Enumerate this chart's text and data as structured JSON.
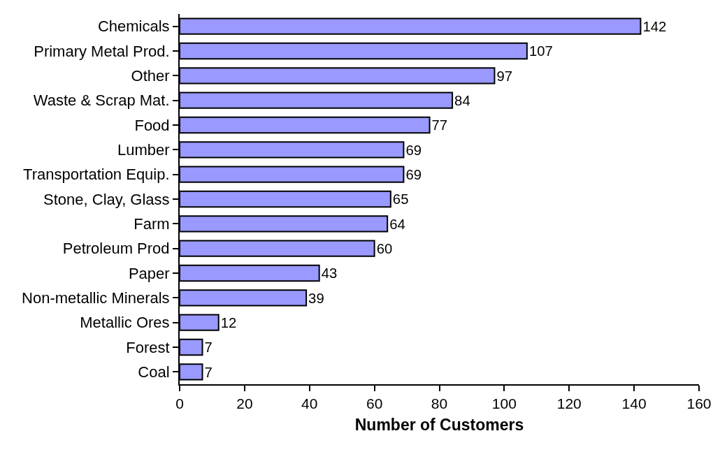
{
  "chart_data": {
    "type": "bar",
    "orientation": "horizontal",
    "xlabel": "Number of Customers",
    "categories": [
      "Chemicals",
      "Primary Metal Prod.",
      "Other",
      "Waste & Scrap Mat.",
      "Food",
      "Lumber",
      "Transportation Equip.",
      "Stone, Clay, Glass",
      "Farm",
      "Petroleum Prod",
      "Paper",
      "Non-metallic Minerals",
      "Metallic Ores",
      "Forest",
      "Coal"
    ],
    "values": [
      142,
      107,
      97,
      84,
      77,
      69,
      69,
      65,
      64,
      60,
      43,
      39,
      12,
      7,
      7
    ],
    "color": "#9999ff",
    "xlim": [
      0,
      160
    ],
    "xticks": [
      0,
      20,
      40,
      60,
      80,
      100,
      120,
      140,
      160
    ],
    "data_labels": true
  }
}
